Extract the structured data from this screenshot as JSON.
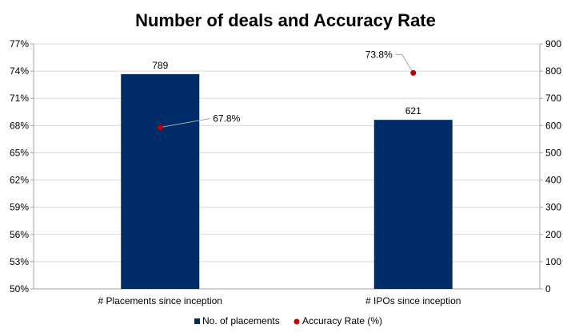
{
  "chart_data": {
    "type": "bar",
    "title": "Number of deals and Accuracy Rate",
    "categories": [
      "# Placements since inception",
      "# IPOs since inception"
    ],
    "series": [
      {
        "name": "No. of placements",
        "type": "bar",
        "axis": "right",
        "values": [
          789,
          621
        ],
        "labels": [
          "789",
          "621"
        ],
        "color": "#002D6A"
      },
      {
        "name": "Accuracy Rate (%)",
        "type": "scatter",
        "axis": "left",
        "values": [
          67.8,
          73.8
        ],
        "labels": [
          "67.8%",
          "73.8%"
        ],
        "color": "#C00000"
      }
    ],
    "y_left": {
      "range": [
        50,
        77
      ],
      "ticks": [
        "50%",
        "53%",
        "56%",
        "59%",
        "62%",
        "65%",
        "68%",
        "71%",
        "74%",
        "77%"
      ]
    },
    "y_right": {
      "range": [
        0,
        900
      ],
      "ticks": [
        "0",
        "100",
        "200",
        "300",
        "400",
        "500",
        "600",
        "700",
        "800",
        "900"
      ]
    },
    "grid": true,
    "legend": "bottom"
  }
}
